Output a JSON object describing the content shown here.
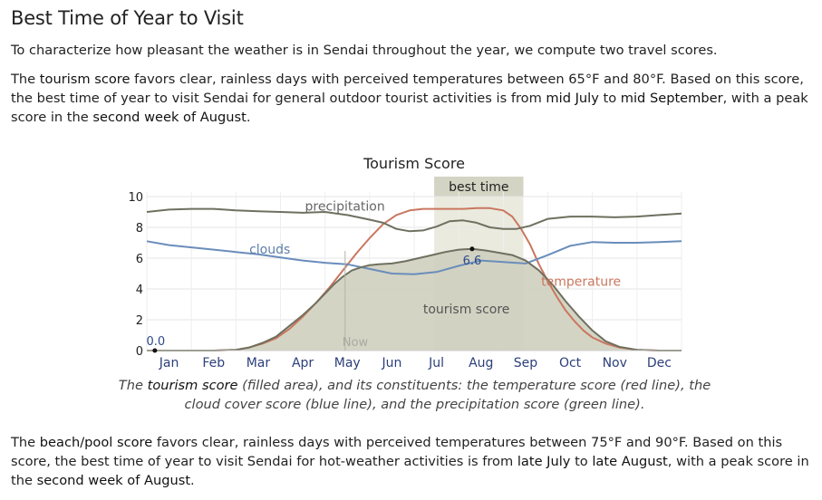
{
  "heading": "Best Time of Year to Visit",
  "intro": "To characterize how pleasant the weather is in Sendai throughout the year, we compute two travel scores.",
  "tourism_paragraph": {
    "p1": "The ",
    "term": "tourism score",
    "p2": " favors clear, rainless days with perceived temperatures between 65°F and 80°F. Based on this score, the best time of year to visit Sendai for general outdoor tourist activities is from ",
    "start": "mid July",
    "to": " to ",
    "end": "mid September",
    "p3": ", with a peak score in the ",
    "peak": "second week of August",
    "p4": "."
  },
  "caption": {
    "p1": "The ",
    "term": "tourism score",
    "p2": " (filled area), and its constituents: the temperature score (red line), the cloud cover score (blue line), and the precipitation score (green line)."
  },
  "beach_paragraph": {
    "p1": "The ",
    "term": "beach/pool score",
    "p2": " favors clear, rainless days with perceived temperatures between 75°F and 90°F. Based on this score, the best time of year to visit Sendai for hot-weather activities is from ",
    "start": "late July",
    "to": " to ",
    "end": "late August",
    "p3": ", with a peak score in the ",
    "peak": "second week of August",
    "p4": "."
  },
  "chart_data": {
    "type": "area",
    "title": "Tourism Score",
    "ylim": [
      0,
      10
    ],
    "yticks": [
      0,
      2,
      4,
      6,
      8,
      10
    ],
    "month_labels": [
      "Jan",
      "Feb",
      "Mar",
      "Apr",
      "May",
      "Jun",
      "Jul",
      "Aug",
      "Sep",
      "Oct",
      "Nov",
      "Dec"
    ],
    "x_unit": "month (0 = Jan 1, 12 = Dec 31)",
    "best_time": {
      "label": "best time",
      "start": 6.45,
      "end": 8.45
    },
    "now": {
      "label": "Now",
      "x": 4.45
    },
    "annotations": [
      {
        "label": "0.0",
        "x": 0.18,
        "y": 0
      },
      {
        "label": "6.6",
        "x": 7.3,
        "y": 6.6
      }
    ],
    "series": [
      {
        "name": "tourism score",
        "role": "area",
        "color": "#6f705f",
        "fill": "#cfcfbf",
        "x": [
          0,
          1,
          1.5,
          2,
          2.3,
          2.6,
          2.9,
          3.2,
          3.5,
          3.8,
          4.0,
          4.2,
          4.4,
          4.6,
          4.8,
          5.0,
          5.2,
          5.5,
          5.8,
          6.1,
          6.4,
          6.7,
          7.0,
          7.3,
          7.6,
          7.9,
          8.2,
          8.5,
          8.8,
          9.1,
          9.4,
          9.7,
          10.0,
          10.3,
          10.6,
          11.0,
          11.5,
          12
        ],
        "y": [
          0,
          0,
          0,
          0.05,
          0.2,
          0.5,
          0.9,
          1.6,
          2.3,
          3.1,
          3.7,
          4.3,
          4.8,
          5.2,
          5.4,
          5.55,
          5.6,
          5.65,
          5.8,
          6.0,
          6.2,
          6.4,
          6.55,
          6.6,
          6.5,
          6.35,
          6.2,
          5.85,
          5.2,
          4.3,
          3.2,
          2.2,
          1.3,
          0.6,
          0.25,
          0.05,
          0,
          0
        ]
      },
      {
        "name": "temperature",
        "role": "line",
        "color": "#c9775f",
        "x": [
          0,
          1,
          1.5,
          2,
          2.3,
          2.6,
          2.9,
          3.2,
          3.5,
          3.8,
          4.1,
          4.4,
          4.7,
          5.0,
          5.3,
          5.6,
          5.9,
          6.2,
          6.5,
          6.8,
          7.1,
          7.4,
          7.7,
          8.0,
          8.2,
          8.4,
          8.6,
          8.8,
          9.0,
          9.2,
          9.4,
          9.6,
          9.8,
          10.0,
          10.3,
          10.6,
          11.0,
          11.5,
          12
        ],
        "y": [
          0,
          0,
          0,
          0.05,
          0.2,
          0.45,
          0.8,
          1.4,
          2.2,
          3.1,
          4.1,
          5.2,
          6.3,
          7.3,
          8.2,
          8.8,
          9.1,
          9.2,
          9.2,
          9.2,
          9.2,
          9.25,
          9.25,
          9.1,
          8.7,
          7.9,
          6.9,
          5.6,
          4.5,
          3.5,
          2.6,
          1.9,
          1.3,
          0.85,
          0.45,
          0.2,
          0.05,
          0,
          0
        ]
      },
      {
        "name": "clouds",
        "role": "line",
        "color": "#6a8dbb",
        "x": [
          0,
          0.5,
          1.0,
          1.5,
          2.0,
          2.5,
          3.0,
          3.5,
          4.0,
          4.5,
          5.0,
          5.5,
          6.0,
          6.5,
          7.0,
          7.5,
          8.0,
          8.5,
          9.0,
          9.5,
          10.0,
          10.5,
          11.0,
          11.5,
          12
        ],
        "y": [
          7.1,
          6.85,
          6.7,
          6.55,
          6.4,
          6.25,
          6.05,
          5.85,
          5.7,
          5.6,
          5.3,
          5.0,
          4.95,
          5.1,
          5.5,
          5.85,
          5.75,
          5.65,
          6.2,
          6.8,
          7.05,
          7.0,
          7.0,
          7.05,
          7.1
        ]
      },
      {
        "name": "precipitation",
        "role": "line",
        "color": "#6f705f",
        "x": [
          0,
          0.5,
          1.0,
          1.5,
          2.0,
          2.5,
          3.0,
          3.5,
          4.0,
          4.5,
          5.0,
          5.3,
          5.6,
          5.9,
          6.2,
          6.5,
          6.8,
          7.1,
          7.4,
          7.7,
          8.0,
          8.3,
          8.6,
          9.0,
          9.5,
          10.0,
          10.5,
          11.0,
          11.5,
          12
        ],
        "y": [
          9.0,
          9.15,
          9.2,
          9.2,
          9.1,
          9.05,
          9.0,
          8.95,
          9.0,
          8.8,
          8.5,
          8.3,
          7.9,
          7.75,
          7.8,
          8.05,
          8.4,
          8.45,
          8.3,
          8.0,
          7.9,
          7.9,
          8.1,
          8.55,
          8.7,
          8.7,
          8.65,
          8.7,
          8.8,
          8.9
        ]
      }
    ],
    "series_labels": [
      {
        "text": "precipitation",
        "x": 3.55,
        "y": 9.1,
        "color": "#666"
      },
      {
        "text": "clouds",
        "x": 2.3,
        "y": 6.3,
        "color": "#5f7fa8"
      },
      {
        "text": "temperature",
        "x": 8.85,
        "y": 4.2,
        "color": "#c9775f"
      },
      {
        "text": "tourism score",
        "x": 6.2,
        "y": 2.4,
        "color": "#555"
      }
    ]
  }
}
